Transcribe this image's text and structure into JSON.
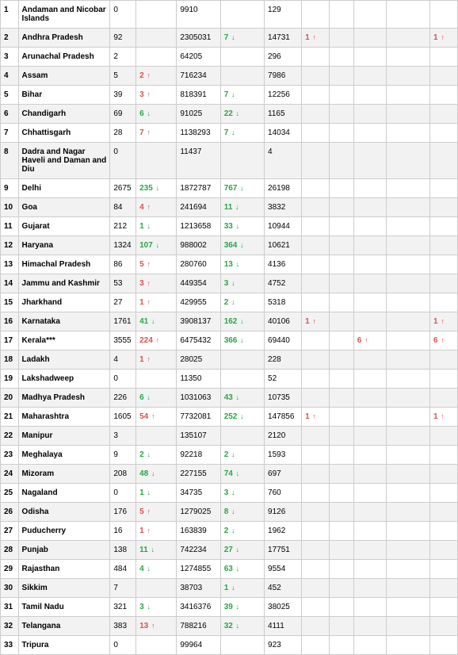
{
  "colors": {
    "up": "#d9534f",
    "down": "#28a745",
    "border": "#cccccc",
    "even_row": "#f2f2f2",
    "odd_row": "#ffffff"
  },
  "columns": [
    {
      "key": "sno",
      "class": "col-sno"
    },
    {
      "key": "state",
      "class": "col-state"
    },
    {
      "key": "act",
      "class": "col-act"
    },
    {
      "key": "actd",
      "class": "col-actd",
      "delta": true
    },
    {
      "key": "cur",
      "class": "col-cur"
    },
    {
      "key": "curd",
      "class": "col-curd",
      "delta": true
    },
    {
      "key": "dth",
      "class": "col-dth"
    },
    {
      "key": "dthd",
      "class": "col-dthd",
      "delta": true
    },
    {
      "key": "x1",
      "class": "col-x1"
    },
    {
      "key": "x2",
      "class": "col-x2",
      "delta": true
    },
    {
      "key": "x3",
      "class": "col-x3"
    },
    {
      "key": "x4",
      "class": "col-x4",
      "delta": true
    }
  ],
  "rows": [
    {
      "sno": "1",
      "state": "Andaman and Nicobar Islands",
      "act": "0",
      "actd": null,
      "cur": "9910",
      "curd": null,
      "dth": "129",
      "dthd": null,
      "x1": "",
      "x2": null,
      "x3": "",
      "x4": null
    },
    {
      "sno": "2",
      "state": "Andhra Pradesh",
      "act": "92",
      "actd": null,
      "cur": "2305031",
      "curd": {
        "v": "7",
        "d": "down"
      },
      "dth": "14731",
      "dthd": {
        "v": "1",
        "d": "up"
      },
      "x1": "",
      "x2": null,
      "x3": "",
      "x4": {
        "v": "1",
        "d": "up"
      }
    },
    {
      "sno": "3",
      "state": "Arunachal Pradesh",
      "act": "2",
      "actd": null,
      "cur": "64205",
      "curd": null,
      "dth": "296",
      "dthd": null,
      "x1": "",
      "x2": null,
      "x3": "",
      "x4": null
    },
    {
      "sno": "4",
      "state": "Assam",
      "act": "5",
      "actd": {
        "v": "2",
        "d": "up"
      },
      "cur": "716234",
      "curd": null,
      "dth": "7986",
      "dthd": null,
      "x1": "",
      "x2": null,
      "x3": "",
      "x4": null
    },
    {
      "sno": "5",
      "state": "Bihar",
      "act": "39",
      "actd": {
        "v": "3",
        "d": "up"
      },
      "cur": "818391",
      "curd": {
        "v": "7",
        "d": "down"
      },
      "dth": "12256",
      "dthd": null,
      "x1": "",
      "x2": null,
      "x3": "",
      "x4": null
    },
    {
      "sno": "6",
      "state": "Chandigarh",
      "act": "69",
      "actd": {
        "v": "6",
        "d": "down"
      },
      "cur": "91025",
      "curd": {
        "v": "22",
        "d": "down"
      },
      "dth": "1165",
      "dthd": null,
      "x1": "",
      "x2": null,
      "x3": "",
      "x4": null
    },
    {
      "sno": "7",
      "state": "Chhattisgarh",
      "act": "28",
      "actd": {
        "v": "7",
        "d": "up"
      },
      "cur": "1138293",
      "curd": {
        "v": "7",
        "d": "down"
      },
      "dth": "14034",
      "dthd": null,
      "x1": "",
      "x2": null,
      "x3": "",
      "x4": null
    },
    {
      "sno": "8",
      "state": "Dadra and Nagar Haveli and Daman and Diu",
      "act": "0",
      "actd": null,
      "cur": "11437",
      "curd": null,
      "dth": "4",
      "dthd": null,
      "x1": "",
      "x2": null,
      "x3": "",
      "x4": null
    },
    {
      "sno": "9",
      "state": "Delhi",
      "act": "2675",
      "actd": {
        "v": "235",
        "d": "down"
      },
      "cur": "1872787",
      "curd": {
        "v": "767",
        "d": "down"
      },
      "dth": "26198",
      "dthd": null,
      "x1": "",
      "x2": null,
      "x3": "",
      "x4": null
    },
    {
      "sno": "10",
      "state": "Goa",
      "act": "84",
      "actd": {
        "v": "4",
        "d": "up"
      },
      "cur": "241694",
      "curd": {
        "v": "11",
        "d": "down"
      },
      "dth": "3832",
      "dthd": null,
      "x1": "",
      "x2": null,
      "x3": "",
      "x4": null
    },
    {
      "sno": "11",
      "state": "Gujarat",
      "act": "212",
      "actd": {
        "v": "1",
        "d": "down"
      },
      "cur": "1213658",
      "curd": {
        "v": "33",
        "d": "down"
      },
      "dth": "10944",
      "dthd": null,
      "x1": "",
      "x2": null,
      "x3": "",
      "x4": null
    },
    {
      "sno": "12",
      "state": "Haryana",
      "act": "1324",
      "actd": {
        "v": "107",
        "d": "down"
      },
      "cur": "988002",
      "curd": {
        "v": "364",
        "d": "down"
      },
      "dth": "10621",
      "dthd": null,
      "x1": "",
      "x2": null,
      "x3": "",
      "x4": null
    },
    {
      "sno": "13",
      "state": "Himachal Pradesh",
      "act": "86",
      "actd": {
        "v": "5",
        "d": "up"
      },
      "cur": "280760",
      "curd": {
        "v": "13",
        "d": "down"
      },
      "dth": "4136",
      "dthd": null,
      "x1": "",
      "x2": null,
      "x3": "",
      "x4": null
    },
    {
      "sno": "14",
      "state": "Jammu and Kashmir",
      "act": "53",
      "actd": {
        "v": "3",
        "d": "up"
      },
      "cur": "449354",
      "curd": {
        "v": "3",
        "d": "down"
      },
      "dth": "4752",
      "dthd": null,
      "x1": "",
      "x2": null,
      "x3": "",
      "x4": null
    },
    {
      "sno": "15",
      "state": "Jharkhand",
      "act": "27",
      "actd": {
        "v": "1",
        "d": "up"
      },
      "cur": "429955",
      "curd": {
        "v": "2",
        "d": "down"
      },
      "dth": "5318",
      "dthd": null,
      "x1": "",
      "x2": null,
      "x3": "",
      "x4": null
    },
    {
      "sno": "16",
      "state": "Karnataka",
      "act": "1761",
      "actd": {
        "v": "41",
        "d": "down"
      },
      "cur": "3908137",
      "curd": {
        "v": "162",
        "d": "down"
      },
      "dth": "40106",
      "dthd": {
        "v": "1",
        "d": "up"
      },
      "x1": "",
      "x2": null,
      "x3": "",
      "x4": {
        "v": "1",
        "d": "up"
      }
    },
    {
      "sno": "17",
      "state": "Kerala***",
      "act": "3555",
      "actd": {
        "v": "224",
        "d": "up"
      },
      "cur": "6475432",
      "curd": {
        "v": "366",
        "d": "down"
      },
      "dth": "69440",
      "dthd": null,
      "x1": "",
      "x2": {
        "v": "6",
        "d": "up"
      },
      "x3": "",
      "x4": {
        "v": "6",
        "d": "up"
      }
    },
    {
      "sno": "18",
      "state": "Ladakh",
      "act": "4",
      "actd": {
        "v": "1",
        "d": "up"
      },
      "cur": "28025",
      "curd": null,
      "dth": "228",
      "dthd": null,
      "x1": "",
      "x2": null,
      "x3": "",
      "x4": null
    },
    {
      "sno": "19",
      "state": "Lakshadweep",
      "act": "0",
      "actd": null,
      "cur": "11350",
      "curd": null,
      "dth": "52",
      "dthd": null,
      "x1": "",
      "x2": null,
      "x3": "",
      "x4": null
    },
    {
      "sno": "20",
      "state": "Madhya Pradesh",
      "act": "226",
      "actd": {
        "v": "6",
        "d": "down"
      },
      "cur": "1031063",
      "curd": {
        "v": "43",
        "d": "down"
      },
      "dth": "10735",
      "dthd": null,
      "x1": "",
      "x2": null,
      "x3": "",
      "x4": null
    },
    {
      "sno": "21",
      "state": "Maharashtra",
      "act": "1605",
      "actd": {
        "v": "54",
        "d": "up"
      },
      "cur": "7732081",
      "curd": {
        "v": "252",
        "d": "down"
      },
      "dth": "147856",
      "dthd": {
        "v": "1",
        "d": "up"
      },
      "x1": "",
      "x2": null,
      "x3": "",
      "x4": {
        "v": "1",
        "d": "up"
      }
    },
    {
      "sno": "22",
      "state": "Manipur",
      "act": "3",
      "actd": null,
      "cur": "135107",
      "curd": null,
      "dth": "2120",
      "dthd": null,
      "x1": "",
      "x2": null,
      "x3": "",
      "x4": null
    },
    {
      "sno": "23",
      "state": "Meghalaya",
      "act": "9",
      "actd": {
        "v": "2",
        "d": "down"
      },
      "cur": "92218",
      "curd": {
        "v": "2",
        "d": "down"
      },
      "dth": "1593",
      "dthd": null,
      "x1": "",
      "x2": null,
      "x3": "",
      "x4": null
    },
    {
      "sno": "24",
      "state": "Mizoram",
      "act": "208",
      "actd": {
        "v": "48",
        "d": "down"
      },
      "cur": "227155",
      "curd": {
        "v": "74",
        "d": "down"
      },
      "dth": "697",
      "dthd": null,
      "x1": "",
      "x2": null,
      "x3": "",
      "x4": null
    },
    {
      "sno": "25",
      "state": "Nagaland",
      "act": "0",
      "actd": {
        "v": "1",
        "d": "down"
      },
      "cur": "34735",
      "curd": {
        "v": "3",
        "d": "down"
      },
      "dth": "760",
      "dthd": null,
      "x1": "",
      "x2": null,
      "x3": "",
      "x4": null
    },
    {
      "sno": "26",
      "state": "Odisha",
      "act": "176",
      "actd": {
        "v": "5",
        "d": "up"
      },
      "cur": "1279025",
      "curd": {
        "v": "8",
        "d": "down"
      },
      "dth": "9126",
      "dthd": null,
      "x1": "",
      "x2": null,
      "x3": "",
      "x4": null
    },
    {
      "sno": "27",
      "state": "Puducherry",
      "act": "16",
      "actd": {
        "v": "1",
        "d": "up"
      },
      "cur": "163839",
      "curd": {
        "v": "2",
        "d": "down"
      },
      "dth": "1962",
      "dthd": null,
      "x1": "",
      "x2": null,
      "x3": "",
      "x4": null
    },
    {
      "sno": "28",
      "state": "Punjab",
      "act": "138",
      "actd": {
        "v": "11",
        "d": "down"
      },
      "cur": "742234",
      "curd": {
        "v": "27",
        "d": "down"
      },
      "dth": "17751",
      "dthd": null,
      "x1": "",
      "x2": null,
      "x3": "",
      "x4": null
    },
    {
      "sno": "29",
      "state": "Rajasthan",
      "act": "484",
      "actd": {
        "v": "4",
        "d": "down"
      },
      "cur": "1274855",
      "curd": {
        "v": "63",
        "d": "down"
      },
      "dth": "9554",
      "dthd": null,
      "x1": "",
      "x2": null,
      "x3": "",
      "x4": null
    },
    {
      "sno": "30",
      "state": "Sikkim",
      "act": "7",
      "actd": null,
      "cur": "38703",
      "curd": {
        "v": "1",
        "d": "down"
      },
      "dth": "452",
      "dthd": null,
      "x1": "",
      "x2": null,
      "x3": "",
      "x4": null
    },
    {
      "sno": "31",
      "state": "Tamil Nadu",
      "act": "321",
      "actd": {
        "v": "3",
        "d": "down"
      },
      "cur": "3416376",
      "curd": {
        "v": "39",
        "d": "down"
      },
      "dth": "38025",
      "dthd": null,
      "x1": "",
      "x2": null,
      "x3": "",
      "x4": null
    },
    {
      "sno": "32",
      "state": "Telangana",
      "act": "383",
      "actd": {
        "v": "13",
        "d": "up"
      },
      "cur": "788216",
      "curd": {
        "v": "32",
        "d": "down"
      },
      "dth": "4111",
      "dthd": null,
      "x1": "",
      "x2": null,
      "x3": "",
      "x4": null
    },
    {
      "sno": "33",
      "state": "Tripura",
      "act": "0",
      "actd": null,
      "cur": "99964",
      "curd": null,
      "dth": "923",
      "dthd": null,
      "x1": "",
      "x2": null,
      "x3": "",
      "x4": null
    }
  ],
  "arrows": {
    "up": "↑",
    "down": "↓"
  }
}
